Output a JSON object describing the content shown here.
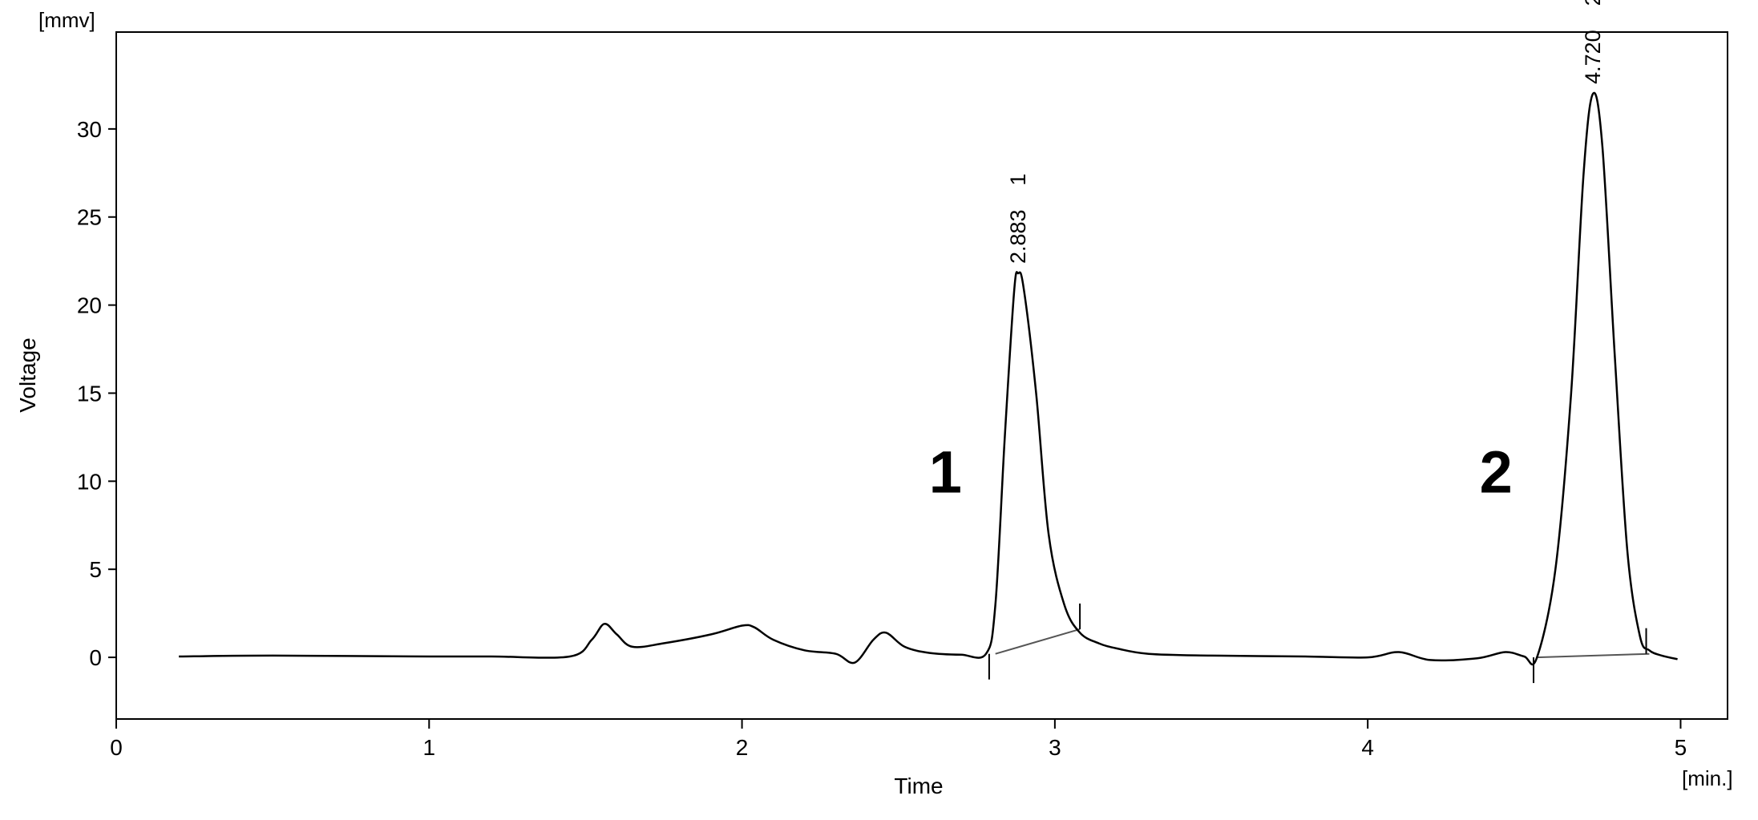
{
  "chart_data": {
    "type": "line",
    "x_unit": "[min.]",
    "y_unit": "[mmv]",
    "xlabel": "Time",
    "ylabel": "Voltage",
    "xlim": [
      0,
      5.15
    ],
    "ylim": [
      -3.5,
      35.5
    ],
    "x_ticks": [
      "0",
      "1",
      "2",
      "3",
      "4",
      "5"
    ],
    "y_ticks": [
      "0",
      "5",
      "10",
      "15",
      "20",
      "25",
      "30"
    ],
    "grid": false,
    "series": [
      {
        "x": [
          0.2,
          0.5,
          1.0,
          1.2,
          1.45,
          1.52,
          1.56,
          1.6,
          1.65,
          1.75,
          1.9,
          2.0,
          2.04,
          2.1,
          2.2,
          2.3,
          2.36,
          2.42,
          2.46,
          2.52,
          2.6,
          2.7,
          2.78,
          2.81,
          2.84,
          2.87,
          2.883,
          2.9,
          2.94,
          2.98,
          3.03,
          3.08,
          3.14,
          3.2,
          3.3,
          3.5,
          3.8,
          4.0,
          4.1,
          4.2,
          4.35,
          4.44,
          4.5,
          4.54,
          4.6,
          4.65,
          4.69,
          4.72,
          4.75,
          4.79,
          4.83,
          4.87,
          4.9,
          4.94,
          4.99
        ],
        "y": [
          0.05,
          0.1,
          0.05,
          0.05,
          0.05,
          1.0,
          1.9,
          1.3,
          0.6,
          0.8,
          1.3,
          1.8,
          1.7,
          1.0,
          0.4,
          0.2,
          -0.3,
          1.0,
          1.4,
          0.6,
          0.25,
          0.15,
          0.2,
          3.0,
          12.5,
          20.8,
          21.8,
          21.0,
          15.0,
          7.0,
          3.0,
          1.4,
          0.8,
          0.5,
          0.2,
          0.1,
          0.05,
          0.0,
          0.3,
          -0.15,
          -0.05,
          0.3,
          0.05,
          -0.05,
          5.0,
          15.0,
          27.5,
          32.0,
          29.0,
          17.0,
          6.0,
          1.2,
          0.4,
          0.1,
          -0.1
        ]
      }
    ],
    "baselines": [
      {
        "x": [
          2.81,
          3.08
        ],
        "y": [
          0.2,
          1.6
        ]
      },
      {
        "x": [
          4.54,
          4.9
        ],
        "y": [
          0.0,
          0.2
        ]
      }
    ],
    "markers": [
      {
        "x": 2.79,
        "y": 0.2,
        "dir": "down"
      },
      {
        "x": 3.08,
        "y": 1.6,
        "dir": "up"
      },
      {
        "x": 4.53,
        "y": 0.0,
        "dir": "down"
      },
      {
        "x": 4.89,
        "y": 0.2,
        "dir": "up"
      }
    ],
    "peaks": [
      {
        "id": "1",
        "retention_time": "2.883",
        "x": 2.883,
        "y": 21.8,
        "big_label": "1",
        "big_label_x": 2.65,
        "big_label_y": 10.5
      },
      {
        "id": "2",
        "retention_time": "4.720",
        "x": 4.72,
        "y": 32.0,
        "big_label": "2",
        "big_label_x": 4.41,
        "big_label_y": 10.5
      }
    ]
  }
}
